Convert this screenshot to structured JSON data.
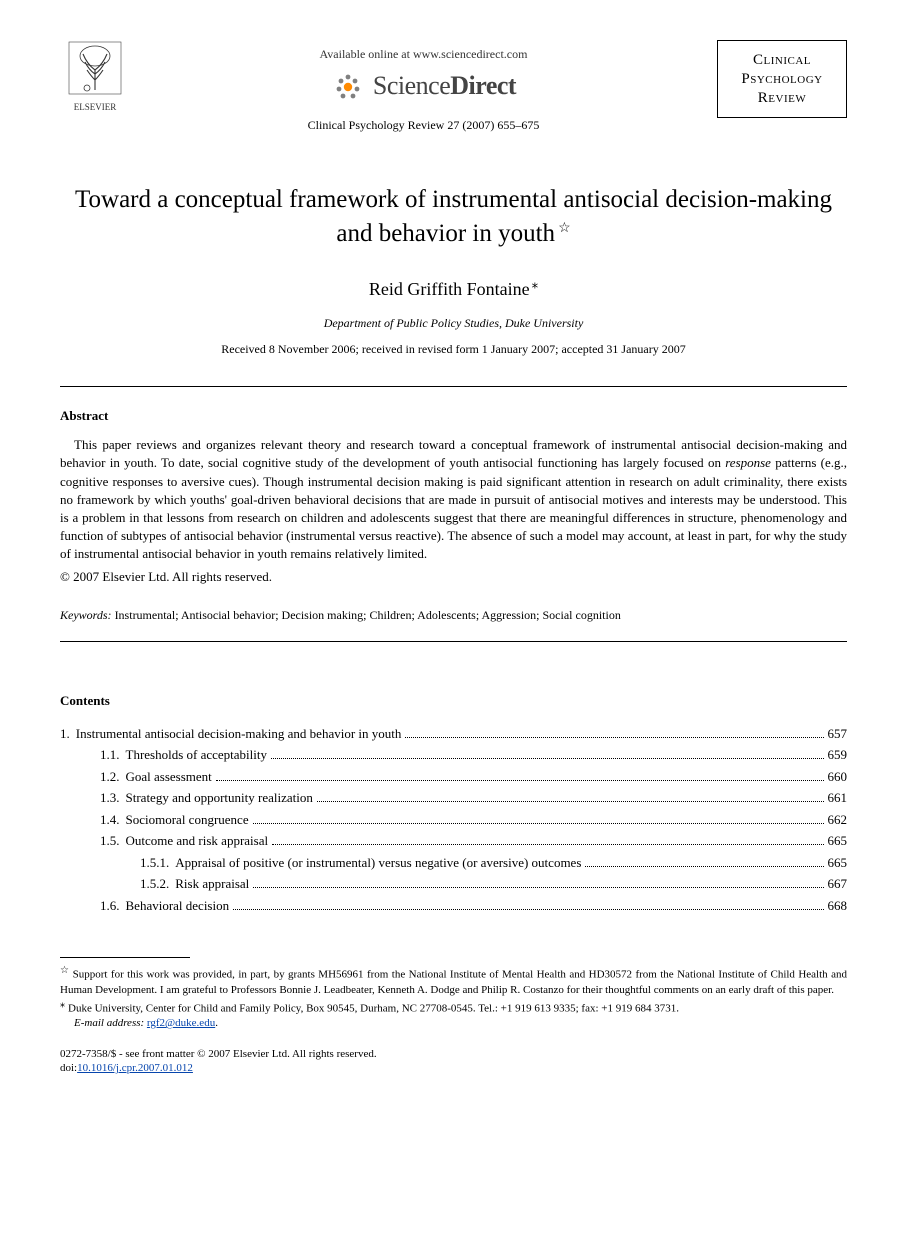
{
  "header": {
    "elsevier_label": "ELSEVIER",
    "available_online": "Available online at www.sciencedirect.com",
    "sd_wordmark_light": "Science",
    "sd_wordmark_bold": "Direct",
    "journal_ref": "Clinical Psychology Review 27 (2007) 655–675",
    "journal_box_line1": "Clinical",
    "journal_box_line2": "Psychology",
    "journal_box_line3": "Review"
  },
  "title": "Toward a conceptual framework of instrumental antisocial decision-making and behavior in youth",
  "author": "Reid Griffith Fontaine",
  "star_symbol": "☆",
  "corr_symbol": "⁎",
  "affiliation": "Department of Public Policy Studies, Duke University",
  "dates": "Received 8 November 2006; received in revised form 1 January 2007; accepted 31 January 2007",
  "abstract_heading": "Abstract",
  "abstract_text": "This paper reviews and organizes relevant theory and research toward a conceptual framework of instrumental antisocial decision-making and behavior in youth. To date, social cognitive study of the development of youth antisocial functioning has largely focused on response patterns (e.g., cognitive responses to aversive cues). Though instrumental decision making is paid significant attention in research on adult criminality, there exists no framework by which youths' goal-driven behavioral decisions that are made in pursuit of antisocial motives and interests may be understood. This is a problem in that lessons from research on children and adolescents suggest that there are meaningful differences in structure, phenomenology and function of subtypes of antisocial behavior (instrumental versus reactive). The absence of such a model may account, at least in part, for why the study of instrumental antisocial behavior in youth remains relatively limited.",
  "copyright": "© 2007 Elsevier Ltd. All rights reserved.",
  "keywords_label": "Keywords:",
  "keywords": "Instrumental; Antisocial behavior; Decision making; Children; Adolescents; Aggression; Social cognition",
  "contents_heading": "Contents",
  "toc": [
    {
      "level": 1,
      "num": "1.",
      "text": "Instrumental antisocial decision-making and behavior in youth",
      "page": "657"
    },
    {
      "level": 2,
      "num": "1.1.",
      "text": "Thresholds of acceptability",
      "page": "659"
    },
    {
      "level": 2,
      "num": "1.2.",
      "text": "Goal assessment",
      "page": "660"
    },
    {
      "level": 2,
      "num": "1.3.",
      "text": "Strategy and opportunity realization",
      "page": "661"
    },
    {
      "level": 2,
      "num": "1.4.",
      "text": "Sociomoral congruence",
      "page": "662"
    },
    {
      "level": 2,
      "num": "1.5.",
      "text": "Outcome and risk appraisal",
      "page": "665"
    },
    {
      "level": 3,
      "num": "1.5.1.",
      "text": "Appraisal of positive (or instrumental) versus negative (or aversive) outcomes",
      "page": "665"
    },
    {
      "level": 3,
      "num": "1.5.2.",
      "text": "Risk appraisal",
      "page": "667"
    },
    {
      "level": 2,
      "num": "1.6.",
      "text": "Behavioral decision",
      "page": "668"
    }
  ],
  "footnote_star": "Support for this work was provided, in part, by grants MH56961 from the National Institute of Mental Health and HD30572 from the National Institute of Child Health and Human Development. I am grateful to Professors Bonnie J. Leadbeater, Kenneth A. Dodge and Philip R. Costanzo for their thoughtful comments on an early draft of this paper.",
  "footnote_corr": "Duke University, Center for Child and Family Policy, Box 90545, Durham, NC 27708-0545. Tel.: +1 919 613 9335; fax: +1 919 684 3731.",
  "email_label": "E-mail address:",
  "email": "rgf2@duke.edu",
  "issn_line": "0272-7358/$ - see front matter © 2007 Elsevier Ltd. All rights reserved.",
  "doi_label": "doi:",
  "doi": "10.1016/j.cpr.2007.01.012",
  "colors": {
    "text": "#000000",
    "background": "#ffffff",
    "link": "#0645ad",
    "logo_orange": "#ff8a00",
    "logo_gray": "#808080"
  }
}
